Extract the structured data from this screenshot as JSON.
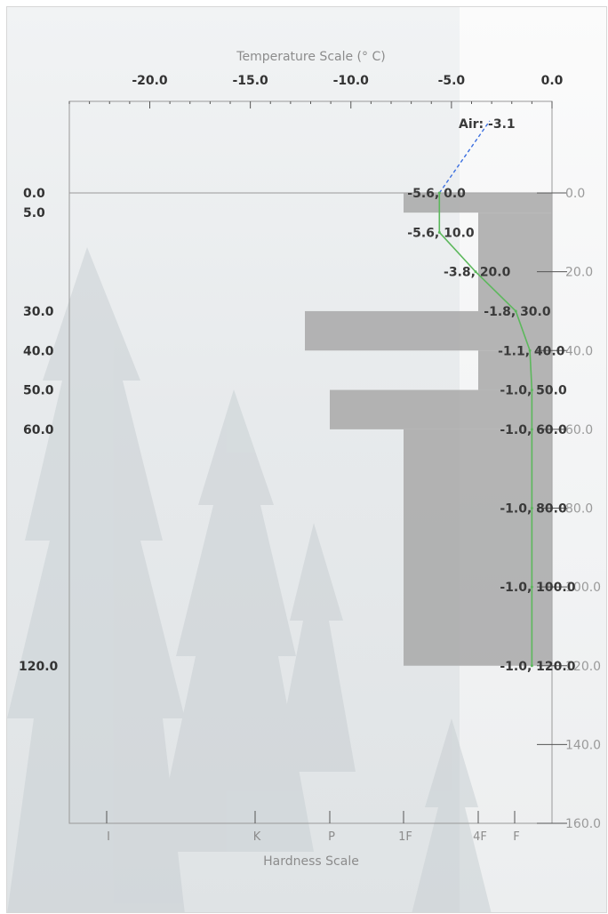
{
  "chart_data": {
    "type": "snow-profile",
    "temperature_axis": {
      "title": "Temperature Scale (° C)",
      "ticks": [
        -20.0,
        -15.0,
        -10.0,
        -5.0,
        0.0
      ],
      "tick_labels": [
        "-20.0",
        "-15.0",
        "-10.0",
        "-5.0",
        "0.0"
      ],
      "range": [
        -24.0,
        0.0
      ]
    },
    "hardness_axis": {
      "title": "Hardness Scale",
      "categories": [
        "I",
        "K",
        "P",
        "1F",
        "4F",
        "F"
      ]
    },
    "depth_axis": {
      "range": [
        0,
        160
      ],
      "right_ticks": [
        0.0,
        20.0,
        40.0,
        60.0,
        80.0,
        100.0,
        120.0,
        140.0,
        160.0
      ],
      "right_tick_labels": [
        "0.0",
        "20.0",
        "40.0",
        "60.0",
        "80.0",
        "100.0",
        "120.0",
        "140.0",
        "160.0"
      ]
    },
    "layers": [
      {
        "top": 0.0,
        "bottom": 5.0,
        "top_label": "0.0",
        "hardness": "1F"
      },
      {
        "top": 5.0,
        "bottom": 30.0,
        "top_label": "5.0",
        "hardness": "4F"
      },
      {
        "top": 30.0,
        "bottom": 40.0,
        "top_label": "30.0",
        "hardness": "P-"
      },
      {
        "top": 40.0,
        "bottom": 50.0,
        "top_label": "40.0",
        "hardness": "4F"
      },
      {
        "top": 50.0,
        "bottom": 60.0,
        "top_label": "50.0",
        "hardness": "P"
      },
      {
        "top": 60.0,
        "bottom": 120.0,
        "top_label": "60.0",
        "hardness": "1F"
      }
    ],
    "bottom_label": "120.0",
    "air_temperature": {
      "label": "Air: -3.1",
      "value": -3.1
    },
    "temperature_profile": [
      {
        "depth": 0.0,
        "temp": -5.6,
        "label": "-5.6, 0.0"
      },
      {
        "depth": 10.0,
        "temp": -5.6,
        "label": "-5.6, 10.0"
      },
      {
        "depth": 20.0,
        "temp": -3.8,
        "label": "-3.8, 20.0"
      },
      {
        "depth": 30.0,
        "temp": -1.8,
        "label": "-1.8, 30.0"
      },
      {
        "depth": 40.0,
        "temp": -1.1,
        "label": "-1.1, 40.0"
      },
      {
        "depth": 50.0,
        "temp": -1.0,
        "label": "-1.0, 50.0"
      },
      {
        "depth": 60.0,
        "temp": -1.0,
        "label": "-1.0, 60.0"
      },
      {
        "depth": 80.0,
        "temp": -1.0,
        "label": "-1.0, 80.0"
      },
      {
        "depth": 100.0,
        "temp": -1.0,
        "label": "-1.0, 100.0"
      },
      {
        "depth": 120.0,
        "temp": -1.0,
        "label": "-1.0, 120.0"
      }
    ],
    "colors": {
      "layer_fill": "#a8a8a8",
      "temperature_line": "#5cb85c",
      "air_line": "#3b6fe0",
      "axis": "#999999"
    },
    "grid": false
  }
}
